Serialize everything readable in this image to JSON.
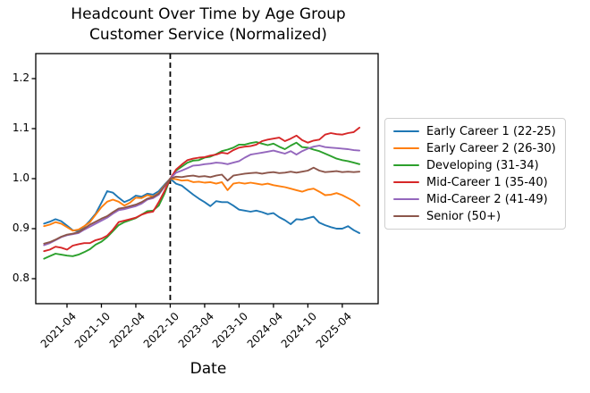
{
  "chart_data": {
    "type": "line",
    "title": "Headcount Over Time by Age Group",
    "subtitle": "Customer Service (Normalized)",
    "xlabel": "Date",
    "ylabel": "",
    "grid": false,
    "legend_position": "right-outside",
    "legend_border_color": "#cfcfcf",
    "axis_color": "#000000",
    "ylim": [
      0.75,
      1.25
    ],
    "y_ticks": [
      0.8,
      0.9,
      1.0,
      1.1,
      1.2
    ],
    "xlim_month_index": [
      -1.45,
      58.25
    ],
    "x_ticks": [
      {
        "label": "2021-04",
        "month_index": 4
      },
      {
        "label": "2021-10",
        "month_index": 10
      },
      {
        "label": "2022-04",
        "month_index": 16
      },
      {
        "label": "2022-10",
        "month_index": 22
      },
      {
        "label": "2023-04",
        "month_index": 28
      },
      {
        "label": "2023-10",
        "month_index": 34
      },
      {
        "label": "2024-04",
        "month_index": 40
      },
      {
        "label": "2024-10",
        "month_index": 46
      },
      {
        "label": "2025-04",
        "month_index": 52
      }
    ],
    "normalization_line": {
      "month_index": 22,
      "date": "2022-10",
      "style": "dashed",
      "color": "#000000",
      "value_at_line": 1.0
    },
    "x": [
      "2020-12",
      "2021-01",
      "2021-02",
      "2021-03",
      "2021-04",
      "2021-05",
      "2021-06",
      "2021-07",
      "2021-08",
      "2021-09",
      "2021-10",
      "2021-11",
      "2021-12",
      "2022-01",
      "2022-02",
      "2022-03",
      "2022-04",
      "2022-05",
      "2022-06",
      "2022-07",
      "2022-08",
      "2022-09",
      "2022-10",
      "2022-11",
      "2022-12",
      "2023-01",
      "2023-02",
      "2023-03",
      "2023-04",
      "2023-05",
      "2023-06",
      "2023-07",
      "2023-08",
      "2023-09",
      "2023-10",
      "2023-11",
      "2023-12",
      "2024-01",
      "2024-02",
      "2024-03",
      "2024-04",
      "2024-05",
      "2024-06",
      "2024-07",
      "2024-08",
      "2024-09",
      "2024-10",
      "2024-11",
      "2024-12",
      "2025-01",
      "2025-02",
      "2025-03",
      "2025-04",
      "2025-05",
      "2025-06",
      "2025-07"
    ],
    "series": [
      {
        "name": "Early Career 1 (22-25)",
        "color": "#1f77b4",
        "values": [
          0.91,
          0.914,
          0.919,
          0.915,
          0.906,
          0.897,
          0.895,
          0.904,
          0.916,
          0.93,
          0.952,
          0.975,
          0.972,
          0.962,
          0.953,
          0.958,
          0.966,
          0.964,
          0.97,
          0.968,
          0.975,
          0.988,
          1.0,
          0.99,
          0.986,
          0.977,
          0.968,
          0.96,
          0.953,
          0.945,
          0.955,
          0.953,
          0.953,
          0.946,
          0.938,
          0.936,
          0.934,
          0.936,
          0.933,
          0.929,
          0.931,
          0.923,
          0.917,
          0.909,
          0.919,
          0.918,
          0.921,
          0.924,
          0.912,
          0.907,
          0.903,
          0.9,
          0.9,
          0.905,
          0.897,
          0.891
        ]
      },
      {
        "name": "Early Career 2 (26-30)",
        "color": "#ff7f0e",
        "values": [
          0.905,
          0.908,
          0.913,
          0.91,
          0.903,
          0.896,
          0.898,
          0.905,
          0.913,
          0.928,
          0.943,
          0.954,
          0.958,
          0.954,
          0.946,
          0.952,
          0.962,
          0.961,
          0.967,
          0.964,
          0.971,
          0.986,
          1.0,
          0.999,
          0.996,
          0.997,
          0.993,
          0.994,
          0.992,
          0.993,
          0.99,
          0.993,
          0.977,
          0.99,
          0.992,
          0.99,
          0.992,
          0.99,
          0.988,
          0.99,
          0.987,
          0.985,
          0.983,
          0.98,
          0.977,
          0.974,
          0.978,
          0.98,
          0.974,
          0.967,
          0.968,
          0.971,
          0.967,
          0.961,
          0.955,
          0.946
        ]
      },
      {
        "name": "Developing (31-34)",
        "color": "#2ca02c",
        "values": [
          0.84,
          0.845,
          0.85,
          0.848,
          0.846,
          0.845,
          0.848,
          0.853,
          0.859,
          0.868,
          0.874,
          0.883,
          0.895,
          0.907,
          0.913,
          0.917,
          0.921,
          0.928,
          0.935,
          0.936,
          0.946,
          0.97,
          1.0,
          1.016,
          1.024,
          1.032,
          1.036,
          1.037,
          1.042,
          1.044,
          1.049,
          1.055,
          1.058,
          1.062,
          1.068,
          1.068,
          1.071,
          1.073,
          1.07,
          1.067,
          1.07,
          1.064,
          1.059,
          1.066,
          1.072,
          1.063,
          1.062,
          1.058,
          1.055,
          1.05,
          1.045,
          1.04,
          1.037,
          1.035,
          1.032,
          1.029
        ]
      },
      {
        "name": "Mid-Career 1 (35-40)",
        "color": "#d62728",
        "values": [
          0.855,
          0.858,
          0.864,
          0.862,
          0.858,
          0.866,
          0.869,
          0.871,
          0.871,
          0.877,
          0.88,
          0.886,
          0.898,
          0.913,
          0.916,
          0.919,
          0.922,
          0.928,
          0.932,
          0.934,
          0.953,
          0.975,
          1.0,
          1.018,
          1.028,
          1.037,
          1.04,
          1.042,
          1.043,
          1.046,
          1.048,
          1.052,
          1.05,
          1.057,
          1.062,
          1.064,
          1.065,
          1.068,
          1.075,
          1.078,
          1.08,
          1.082,
          1.075,
          1.08,
          1.086,
          1.077,
          1.072,
          1.076,
          1.078,
          1.088,
          1.091,
          1.089,
          1.088,
          1.091,
          1.093,
          1.102
        ]
      },
      {
        "name": "Mid-Career 2 (41-49)",
        "color": "#9467bd",
        "values": [
          0.867,
          0.871,
          0.877,
          0.883,
          0.887,
          0.889,
          0.891,
          0.898,
          0.904,
          0.91,
          0.916,
          0.922,
          0.93,
          0.937,
          0.939,
          0.942,
          0.945,
          0.95,
          0.958,
          0.961,
          0.968,
          0.984,
          1.0,
          1.012,
          1.016,
          1.021,
          1.026,
          1.027,
          1.029,
          1.03,
          1.032,
          1.031,
          1.029,
          1.032,
          1.035,
          1.042,
          1.048,
          1.05,
          1.052,
          1.054,
          1.056,
          1.053,
          1.05,
          1.055,
          1.048,
          1.055,
          1.06,
          1.064,
          1.066,
          1.063,
          1.062,
          1.061,
          1.06,
          1.059,
          1.057,
          1.056
        ]
      },
      {
        "name": "Senior (50+)",
        "color": "#8c564b",
        "values": [
          0.87,
          0.873,
          0.878,
          0.884,
          0.888,
          0.89,
          0.893,
          0.9,
          0.908,
          0.914,
          0.92,
          0.925,
          0.933,
          0.94,
          0.942,
          0.945,
          0.948,
          0.953,
          0.96,
          0.963,
          0.97,
          0.985,
          1.0,
          1.004,
          1.003,
          1.005,
          1.006,
          1.004,
          1.005,
          1.003,
          1.006,
          1.008,
          0.996,
          1.006,
          1.008,
          1.01,
          1.011,
          1.012,
          1.01,
          1.012,
          1.013,
          1.011,
          1.012,
          1.014,
          1.012,
          1.014,
          1.016,
          1.022,
          1.016,
          1.013,
          1.014,
          1.015,
          1.013,
          1.014,
          1.013,
          1.014
        ]
      }
    ]
  }
}
